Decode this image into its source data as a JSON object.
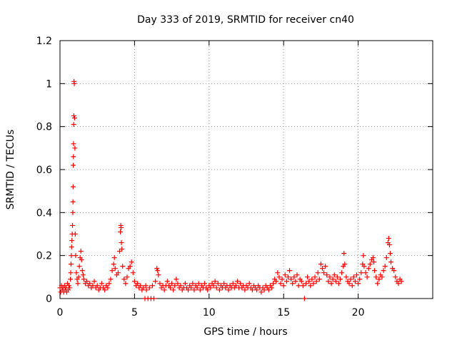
{
  "chart_data": {
    "type": "scatter",
    "title": "Day 333 of 2019, SRMTID for receiver cn40",
    "xlabel": "GPS time / hours",
    "ylabel": "SRMTID / TECUs",
    "xlim": [
      0,
      25
    ],
    "ylim": [
      0,
      1.2
    ],
    "xticks": [
      0,
      5,
      10,
      15,
      20
    ],
    "xtick_labels": [
      "0",
      "5",
      "10",
      "15",
      "20"
    ],
    "yticks": [
      0,
      0.2,
      0.4,
      0.6,
      0.8,
      1.0,
      1.2
    ],
    "ytick_labels": [
      "0",
      "0.2",
      "0.4",
      "0.6",
      "0.8",
      "1",
      "1.2"
    ],
    "grid": true,
    "marker": "+",
    "color": "#ff0000",
    "series": [
      {
        "name": "SRMTID",
        "points": [
          [
            0.0,
            0.05
          ],
          [
            0.05,
            0.03
          ],
          [
            0.1,
            0.06
          ],
          [
            0.15,
            0.04
          ],
          [
            0.2,
            0.05
          ],
          [
            0.25,
            0.03
          ],
          [
            0.3,
            0.06
          ],
          [
            0.35,
            0.04
          ],
          [
            0.4,
            0.05
          ],
          [
            0.45,
            0.03
          ],
          [
            0.5,
            0.07
          ],
          [
            0.55,
            0.04
          ],
          [
            0.6,
            0.06
          ],
          [
            0.65,
            0.05
          ],
          [
            0.7,
            0.09
          ],
          [
            0.72,
            0.12
          ],
          [
            0.74,
            0.16
          ],
          [
            0.76,
            0.2
          ],
          [
            0.78,
            0.24
          ],
          [
            0.8,
            0.27
          ],
          [
            0.82,
            0.3
          ],
          [
            0.84,
            0.34
          ],
          [
            0.86,
            0.4
          ],
          [
            0.87,
            0.45
          ],
          [
            0.88,
            0.52
          ],
          [
            0.89,
            0.62
          ],
          [
            0.9,
            0.66
          ],
          [
            0.91,
            0.72
          ],
          [
            0.92,
            0.81
          ],
          [
            0.93,
            0.85
          ],
          [
            0.94,
            1.01
          ],
          [
            0.96,
            1.0
          ],
          [
            0.98,
            0.84
          ],
          [
            1.0,
            0.7
          ],
          [
            1.02,
            0.3
          ],
          [
            1.05,
            0.2
          ],
          [
            1.1,
            0.12
          ],
          [
            1.15,
            0.09
          ],
          [
            1.2,
            0.07
          ],
          [
            1.25,
            0.1
          ],
          [
            1.3,
            0.15
          ],
          [
            1.35,
            0.19
          ],
          [
            1.4,
            0.22
          ],
          [
            1.45,
            0.18
          ],
          [
            1.5,
            0.13
          ],
          [
            1.55,
            0.11
          ],
          [
            1.6,
            0.09
          ],
          [
            1.7,
            0.07
          ],
          [
            1.8,
            0.08
          ],
          [
            1.9,
            0.06
          ],
          [
            2.0,
            0.07
          ],
          [
            2.1,
            0.05
          ],
          [
            2.2,
            0.06
          ],
          [
            2.3,
            0.08
          ],
          [
            2.4,
            0.05
          ],
          [
            2.5,
            0.06
          ],
          [
            2.6,
            0.04
          ],
          [
            2.7,
            0.05
          ],
          [
            2.8,
            0.07
          ],
          [
            2.9,
            0.05
          ],
          [
            3.0,
            0.04
          ],
          [
            3.1,
            0.06
          ],
          [
            3.2,
            0.05
          ],
          [
            3.3,
            0.07
          ],
          [
            3.4,
            0.09
          ],
          [
            3.5,
            0.13
          ],
          [
            3.6,
            0.16
          ],
          [
            3.65,
            0.19
          ],
          [
            3.7,
            0.14
          ],
          [
            3.8,
            0.11
          ],
          [
            3.9,
            0.12
          ],
          [
            4.0,
            0.22
          ],
          [
            4.05,
            0.31
          ],
          [
            4.08,
            0.34
          ],
          [
            4.1,
            0.33
          ],
          [
            4.12,
            0.26
          ],
          [
            4.15,
            0.23
          ],
          [
            4.2,
            0.15
          ],
          [
            4.3,
            0.09
          ],
          [
            4.4,
            0.07
          ],
          [
            4.5,
            0.1
          ],
          [
            4.6,
            0.14
          ],
          [
            4.7,
            0.15
          ],
          [
            4.8,
            0.17
          ],
          [
            4.9,
            0.12
          ],
          [
            5.0,
            0.08
          ],
          [
            5.1,
            0.06
          ],
          [
            5.2,
            0.07
          ],
          [
            5.3,
            0.05
          ],
          [
            5.4,
            0.06
          ],
          [
            5.5,
            0.04
          ],
          [
            5.6,
            0.05
          ],
          [
            5.7,
            0.0
          ],
          [
            5.75,
            0.06
          ],
          [
            5.8,
            0.04
          ],
          [
            5.9,
            0.0
          ],
          [
            6.0,
            0.05
          ],
          [
            6.1,
            0.0
          ],
          [
            6.2,
            0.06
          ],
          [
            6.3,
            0.0
          ],
          [
            6.4,
            0.08
          ],
          [
            6.5,
            0.14
          ],
          [
            6.55,
            0.13
          ],
          [
            6.6,
            0.11
          ],
          [
            6.7,
            0.07
          ],
          [
            6.8,
            0.05
          ],
          [
            6.9,
            0.06
          ],
          [
            7.0,
            0.04
          ],
          [
            7.1,
            0.06
          ],
          [
            7.2,
            0.08
          ],
          [
            7.3,
            0.06
          ],
          [
            7.4,
            0.05
          ],
          [
            7.5,
            0.07
          ],
          [
            7.6,
            0.04
          ],
          [
            7.7,
            0.06
          ],
          [
            7.8,
            0.09
          ],
          [
            7.9,
            0.07
          ],
          [
            8.0,
            0.05
          ],
          [
            8.1,
            0.06
          ],
          [
            8.2,
            0.04
          ],
          [
            8.3,
            0.05
          ],
          [
            8.4,
            0.07
          ],
          [
            8.5,
            0.05
          ],
          [
            8.6,
            0.04
          ],
          [
            8.7,
            0.06
          ],
          [
            8.8,
            0.05
          ],
          [
            8.9,
            0.07
          ],
          [
            9.0,
            0.04
          ],
          [
            9.1,
            0.06
          ],
          [
            9.2,
            0.05
          ],
          [
            9.3,
            0.07
          ],
          [
            9.4,
            0.04
          ],
          [
            9.5,
            0.06
          ],
          [
            9.6,
            0.05
          ],
          [
            9.7,
            0.07
          ],
          [
            9.8,
            0.05
          ],
          [
            9.9,
            0.04
          ],
          [
            10.0,
            0.06
          ],
          [
            10.1,
            0.05
          ],
          [
            10.2,
            0.07
          ],
          [
            10.3,
            0.06
          ],
          [
            10.4,
            0.08
          ],
          [
            10.5,
            0.05
          ],
          [
            10.6,
            0.07
          ],
          [
            10.7,
            0.04
          ],
          [
            10.8,
            0.06
          ],
          [
            10.9,
            0.05
          ],
          [
            11.0,
            0.07
          ],
          [
            11.1,
            0.05
          ],
          [
            11.2,
            0.06
          ],
          [
            11.3,
            0.04
          ],
          [
            11.4,
            0.06
          ],
          [
            11.5,
            0.05
          ],
          [
            11.6,
            0.07
          ],
          [
            11.7,
            0.05
          ],
          [
            11.8,
            0.06
          ],
          [
            11.9,
            0.08
          ],
          [
            12.0,
            0.05
          ],
          [
            12.1,
            0.07
          ],
          [
            12.2,
            0.05
          ],
          [
            12.3,
            0.06
          ],
          [
            12.4,
            0.04
          ],
          [
            12.5,
            0.06
          ],
          [
            12.6,
            0.05
          ],
          [
            12.7,
            0.07
          ],
          [
            12.8,
            0.05
          ],
          [
            12.9,
            0.04
          ],
          [
            13.0,
            0.06
          ],
          [
            13.1,
            0.05
          ],
          [
            13.2,
            0.04
          ],
          [
            13.3,
            0.06
          ],
          [
            13.4,
            0.05
          ],
          [
            13.5,
            0.03
          ],
          [
            13.6,
            0.05
          ],
          [
            13.7,
            0.04
          ],
          [
            13.8,
            0.06
          ],
          [
            13.9,
            0.05
          ],
          [
            14.0,
            0.04
          ],
          [
            14.1,
            0.06
          ],
          [
            14.2,
            0.05
          ],
          [
            14.3,
            0.07
          ],
          [
            14.4,
            0.09
          ],
          [
            14.5,
            0.08
          ],
          [
            14.6,
            0.12
          ],
          [
            14.7,
            0.1
          ],
          [
            14.8,
            0.07
          ],
          [
            14.9,
            0.09
          ],
          [
            15.0,
            0.06
          ],
          [
            15.1,
            0.11
          ],
          [
            15.2,
            0.08
          ],
          [
            15.3,
            0.1
          ],
          [
            15.4,
            0.13
          ],
          [
            15.5,
            0.09
          ],
          [
            15.6,
            0.07
          ],
          [
            15.7,
            0.1
          ],
          [
            15.8,
            0.08
          ],
          [
            15.9,
            0.11
          ],
          [
            16.0,
            0.06
          ],
          [
            16.1,
            0.09
          ],
          [
            16.2,
            0.08
          ],
          [
            16.3,
            0.06
          ],
          [
            16.4,
            0.0
          ],
          [
            16.5,
            0.07
          ],
          [
            16.6,
            0.1
          ],
          [
            16.7,
            0.08
          ],
          [
            16.8,
            0.06
          ],
          [
            16.9,
            0.09
          ],
          [
            17.0,
            0.07
          ],
          [
            17.1,
            0.1
          ],
          [
            17.2,
            0.08
          ],
          [
            17.3,
            0.12
          ],
          [
            17.4,
            0.09
          ],
          [
            17.5,
            0.16
          ],
          [
            17.6,
            0.14
          ],
          [
            17.7,
            0.12
          ],
          [
            17.8,
            0.15
          ],
          [
            17.9,
            0.11
          ],
          [
            18.0,
            0.08
          ],
          [
            18.1,
            0.1
          ],
          [
            18.2,
            0.07
          ],
          [
            18.3,
            0.09
          ],
          [
            18.4,
            0.11
          ],
          [
            18.5,
            0.08
          ],
          [
            18.6,
            0.1
          ],
          [
            18.7,
            0.07
          ],
          [
            18.8,
            0.09
          ],
          [
            18.9,
            0.12
          ],
          [
            19.0,
            0.15
          ],
          [
            19.05,
            0.21
          ],
          [
            19.1,
            0.16
          ],
          [
            19.2,
            0.1
          ],
          [
            19.3,
            0.08
          ],
          [
            19.4,
            0.07
          ],
          [
            19.5,
            0.09
          ],
          [
            19.6,
            0.06
          ],
          [
            19.7,
            0.1
          ],
          [
            19.8,
            0.08
          ],
          [
            19.9,
            0.11
          ],
          [
            20.0,
            0.07
          ],
          [
            20.1,
            0.09
          ],
          [
            20.2,
            0.12
          ],
          [
            20.3,
            0.16
          ],
          [
            20.35,
            0.2
          ],
          [
            20.4,
            0.15
          ],
          [
            20.5,
            0.12
          ],
          [
            20.6,
            0.1
          ],
          [
            20.7,
            0.14
          ],
          [
            20.8,
            0.16
          ],
          [
            20.9,
            0.18
          ],
          [
            21.0,
            0.19
          ],
          [
            21.05,
            0.17
          ],
          [
            21.1,
            0.13
          ],
          [
            21.2,
            0.1
          ],
          [
            21.3,
            0.07
          ],
          [
            21.4,
            0.09
          ],
          [
            21.5,
            0.11
          ],
          [
            21.6,
            0.1
          ],
          [
            21.7,
            0.13
          ],
          [
            21.8,
            0.15
          ],
          [
            21.9,
            0.19
          ],
          [
            22.0,
            0.26
          ],
          [
            22.05,
            0.28
          ],
          [
            22.1,
            0.25
          ],
          [
            22.15,
            0.21
          ],
          [
            22.2,
            0.17
          ],
          [
            22.3,
            0.14
          ],
          [
            22.4,
            0.13
          ],
          [
            22.5,
            0.1
          ],
          [
            22.6,
            0.08
          ],
          [
            22.7,
            0.07
          ],
          [
            22.8,
            0.09
          ],
          [
            22.9,
            0.08
          ]
        ]
      }
    ]
  }
}
